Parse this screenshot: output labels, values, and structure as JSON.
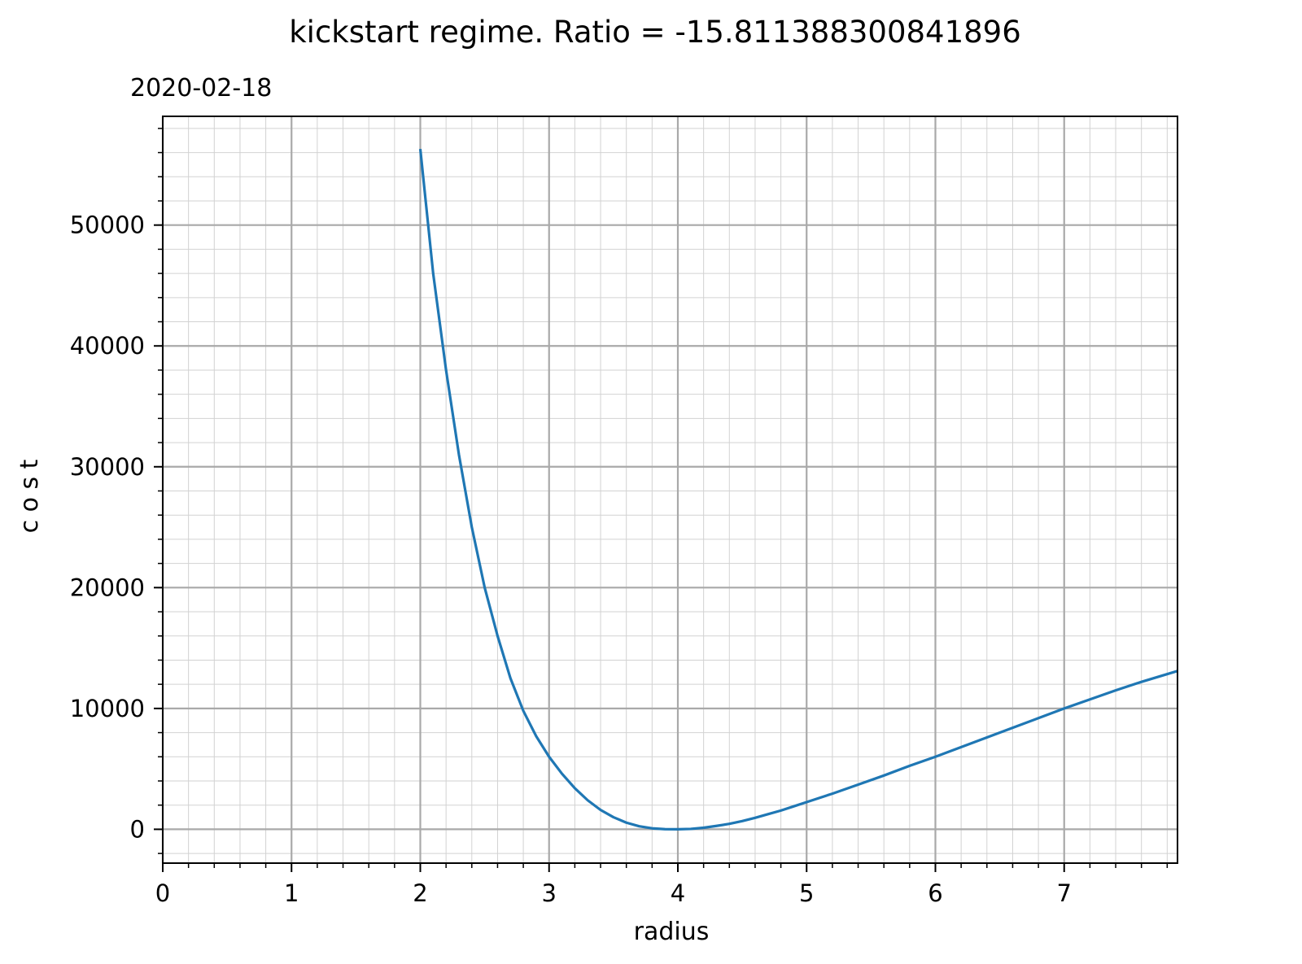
{
  "chart_data": {
    "type": "line",
    "title": "kickstart regime. Ratio = -15.811388300841896",
    "subtitle": "2020-02-18",
    "xlabel": "radius",
    "ylabel": "c o s t",
    "xlim": [
      0,
      7.88
    ],
    "ylim": [
      -2800,
      59000
    ],
    "xticks": [
      0,
      1,
      2,
      3,
      4,
      5,
      6,
      7
    ],
    "yticks": [
      0,
      10000,
      20000,
      30000,
      40000,
      50000
    ],
    "xtick_labels": [
      "0",
      "1",
      "2",
      "3",
      "4",
      "5",
      "6",
      "7"
    ],
    "ytick_labels": [
      "0",
      "10000",
      "20000",
      "30000",
      "40000",
      "50000"
    ],
    "x_minor_step": 0.2,
    "y_minor_step": 2000,
    "grid": {
      "major": true,
      "minor": true
    },
    "line_color": "#1f77b4",
    "series": [
      {
        "x": [
          2.0,
          2.1,
          2.2,
          2.3,
          2.4,
          2.5,
          2.6,
          2.7,
          2.8,
          2.9,
          3.0,
          3.1,
          3.2,
          3.3,
          3.4,
          3.5,
          3.6,
          3.7,
          3.8,
          3.9,
          4.0,
          4.1,
          4.2,
          4.3,
          4.4,
          4.5,
          4.6,
          4.7,
          4.8,
          4.9,
          5.0,
          5.2,
          5.4,
          5.6,
          5.8,
          6.0,
          6.2,
          6.4,
          6.6,
          6.8,
          7.0,
          7.2,
          7.4,
          7.6,
          7.88
        ],
        "values": [
          56300,
          46000,
          38000,
          31000,
          25000,
          20000,
          16000,
          12500,
          9800,
          7700,
          6000,
          4600,
          3400,
          2400,
          1600,
          1000,
          550,
          250,
          80,
          10,
          0,
          30,
          130,
          280,
          450,
          680,
          950,
          1250,
          1550,
          1900,
          2250,
          2950,
          3700,
          4450,
          5250,
          6000,
          6800,
          7600,
          8400,
          9200,
          10000,
          10750,
          11500,
          12200,
          13100
        ]
      }
    ]
  }
}
